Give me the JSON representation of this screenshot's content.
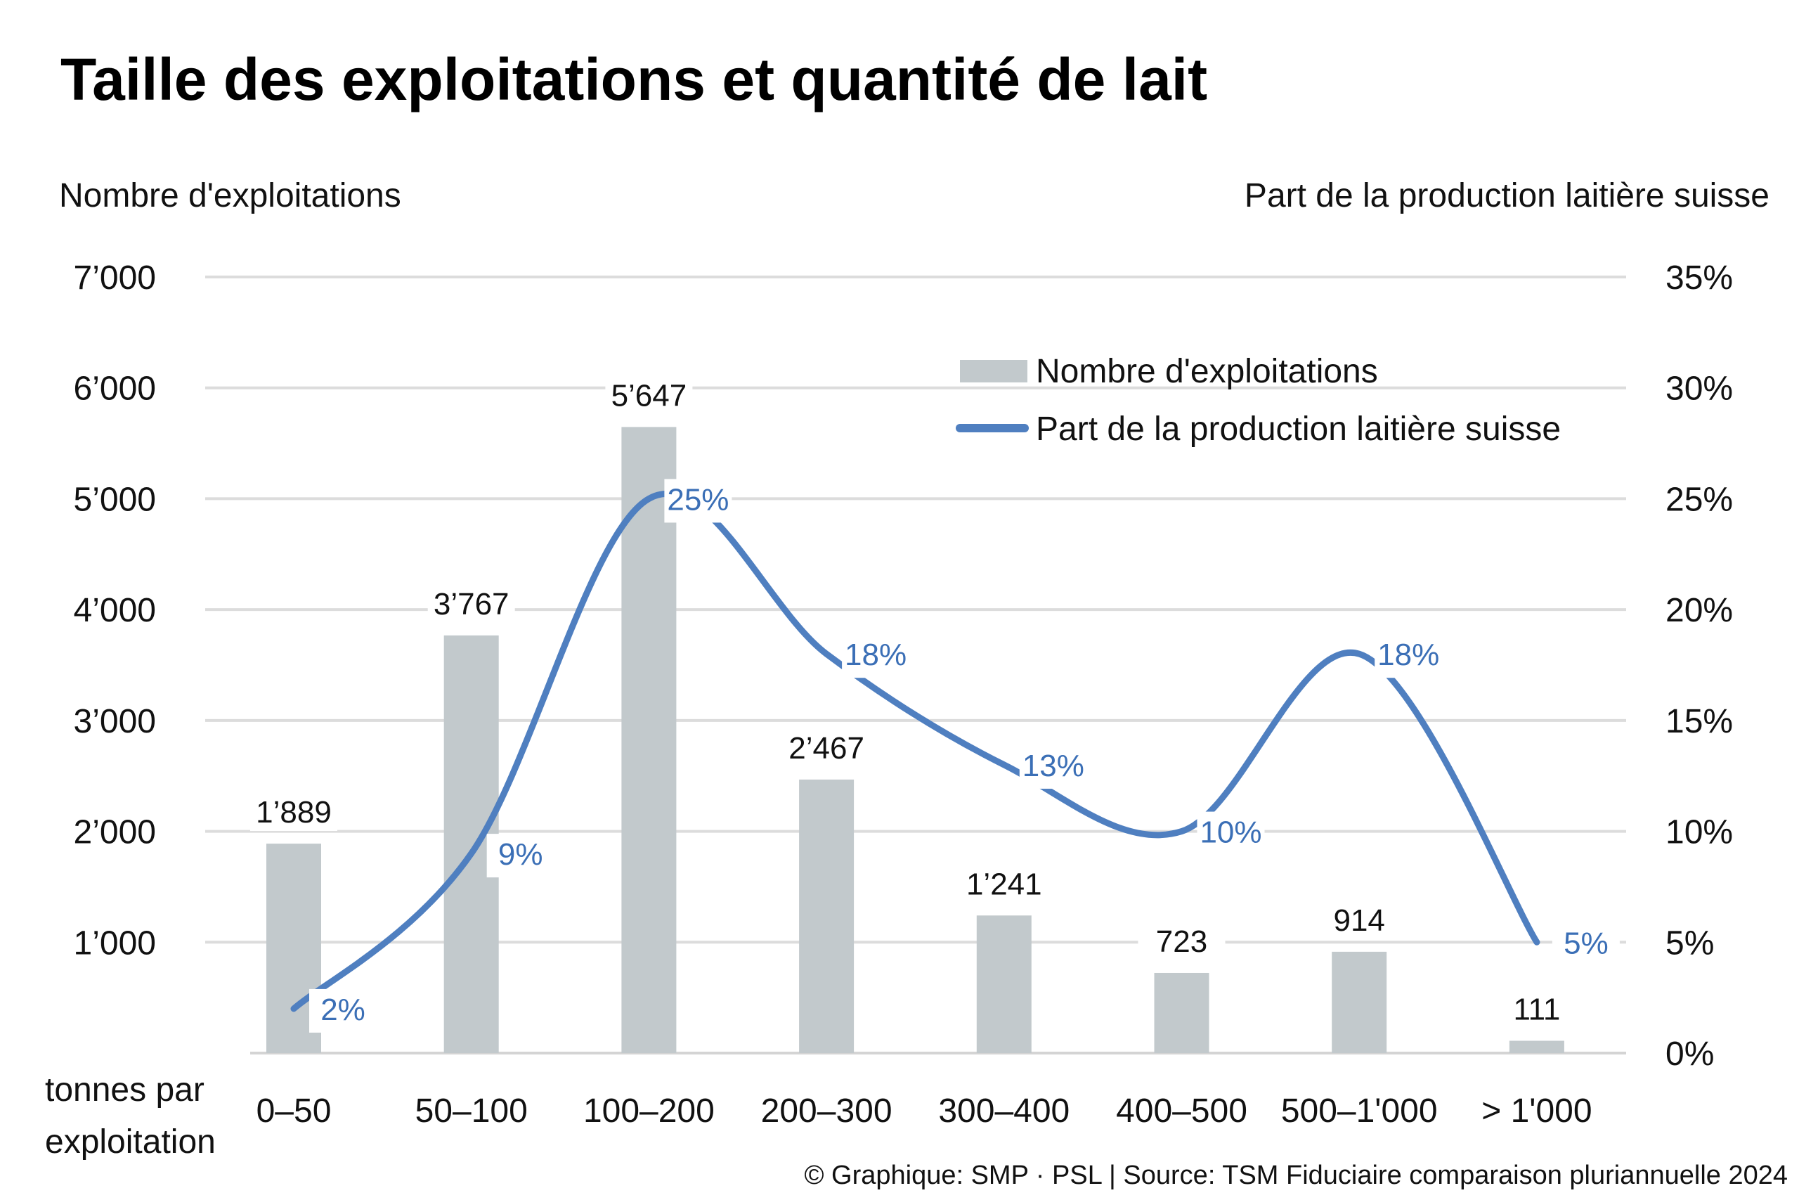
{
  "chart_data": {
    "type": "bar+line",
    "title": "Taille des exploitations et quantité de lait",
    "ylabel_left": "Nombre d'exploitations",
    "ylabel_right": "Part de la production laitière suisse",
    "xlabel": "tonnes par exploitation",
    "xlabel_lines": [
      "tonnes par",
      "exploitation"
    ],
    "categories": [
      "0–50",
      "50–100",
      "100–200",
      "200–300",
      "300–400",
      "400–500",
      "500–1'000",
      "> 1'000"
    ],
    "left_axis": {
      "ylim": [
        0,
        7000
      ],
      "ticks": [
        0,
        1000,
        2000,
        3000,
        4000,
        5000,
        6000,
        7000
      ],
      "tick_labels": [
        "",
        "1’000",
        "2’000",
        "3’000",
        "4’000",
        "5’000",
        "6’000",
        "7’000"
      ]
    },
    "right_axis": {
      "ylim": [
        0,
        35
      ],
      "ticks": [
        0,
        5,
        10,
        15,
        20,
        25,
        30,
        35
      ],
      "tick_labels": [
        "0%",
        "5%",
        "10%",
        "15%",
        "20%",
        "25%",
        "30%",
        "35%"
      ]
    },
    "grid": true,
    "legend_position": "top-right",
    "series": [
      {
        "name": "Nombre d'exploitations",
        "type": "bar",
        "axis": "left",
        "color": "#c2c9cc",
        "values": [
          1889,
          3767,
          5647,
          2467,
          1241,
          723,
          914,
          111
        ],
        "labels": [
          "1’889",
          "3’767",
          "5’647",
          "2’467",
          "1’241",
          "723",
          "914",
          "111"
        ]
      },
      {
        "name": "Part de la production laitière suisse",
        "type": "line",
        "axis": "right",
        "color": "#4f7fc0",
        "label_color": "#3b6fb6",
        "values": [
          2,
          9,
          25,
          18,
          13,
          10,
          18,
          5
        ],
        "labels": [
          "2%",
          "9%",
          "25%",
          "18%",
          "13%",
          "10%",
          "18%",
          "5%"
        ]
      }
    ],
    "source": "© Graphique: SMP · PSL | Source: TSM Fiduciaire comparaison pluriannuelle 2024"
  }
}
